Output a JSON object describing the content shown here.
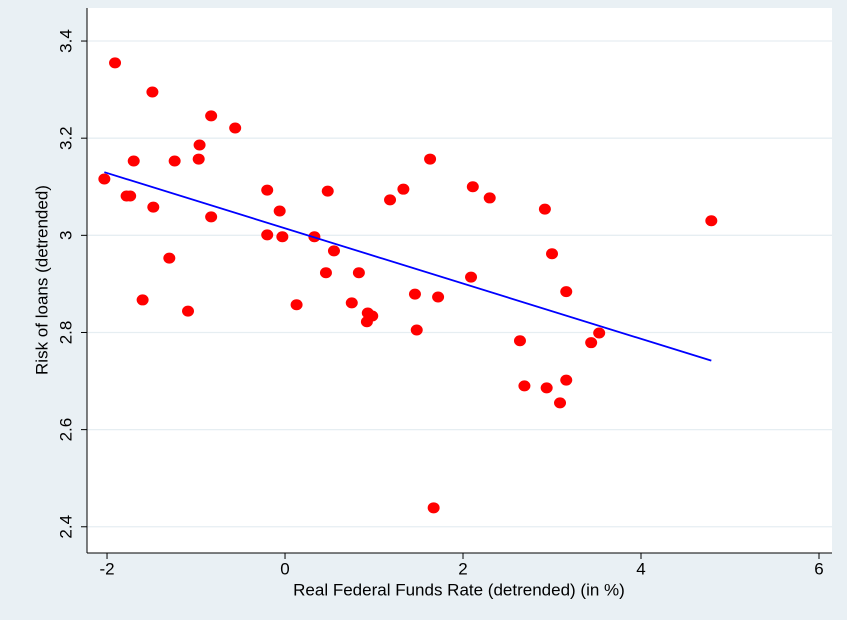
{
  "chart_data": {
    "type": "scatter",
    "xlabel": "Real Federal Funds Rate (detrended) (in %)",
    "ylabel": "Risk of loans (detrended)",
    "xlim": [
      -2.225,
      6.146
    ],
    "ylim": [
      2.346,
      3.468
    ],
    "xticks": [
      -2,
      0,
      2,
      4,
      6
    ],
    "yticks": [
      2.4,
      2.6,
      2.8,
      3,
      3.2,
      3.4
    ],
    "grid": true,
    "series": [
      {
        "type": "scatter",
        "color": "#ff0000",
        "x": [
          -2.03,
          -1.91,
          -1.49,
          -1.7,
          -1.78,
          -1.74,
          -1.48,
          -1.24,
          -1.3,
          -1.6,
          -1.09,
          -0.83,
          -0.96,
          -0.97,
          -0.56,
          -0.83,
          -0.2,
          -0.06,
          -0.2,
          -0.03,
          0.13,
          0.33,
          0.48,
          0.55,
          0.46,
          0.83,
          0.75,
          0.93,
          0.92,
          0.98,
          1.18,
          1.33,
          1.46,
          1.48,
          1.63,
          1.72,
          1.67,
          2.11,
          2.09,
          2.3,
          2.64,
          2.69,
          2.92,
          3.0,
          2.94,
          3.09,
          3.16,
          3.16,
          3.44,
          3.53,
          4.79
        ],
        "values": [
          3.116,
          3.355,
          3.295,
          3.153,
          3.081,
          3.081,
          3.058,
          3.153,
          2.953,
          2.867,
          2.844,
          3.246,
          3.186,
          3.157,
          3.221,
          3.038,
          3.093,
          3.05,
          3.001,
          2.997,
          2.857,
          2.997,
          3.091,
          2.968,
          2.923,
          2.923,
          2.861,
          2.84,
          2.822,
          2.834,
          3.073,
          3.095,
          2.879,
          2.805,
          3.157,
          2.873,
          2.439,
          3.1,
          2.914,
          3.077,
          2.783,
          2.69,
          3.054,
          2.962,
          2.686,
          2.655,
          2.884,
          2.702,
          2.779,
          2.799,
          3.03
        ]
      },
      {
        "type": "line",
        "color": "#0000ff",
        "x": [
          -2.03,
          4.79
        ],
        "values": [
          3.13,
          2.742
        ]
      }
    ]
  }
}
